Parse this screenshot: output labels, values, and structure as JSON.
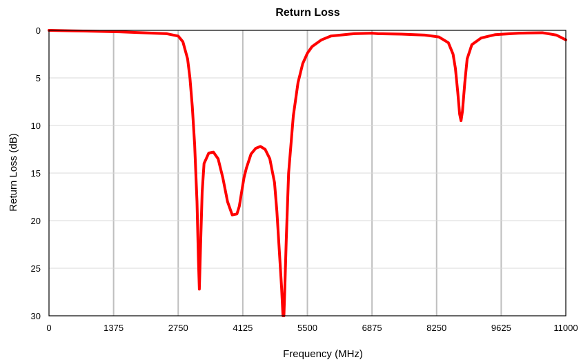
{
  "chart_data": {
    "type": "line",
    "title": "Return Loss",
    "xlabel": "Frequency (MHz)",
    "ylabel": "Return Loss (dB)",
    "xlim": [
      0,
      11000
    ],
    "ylim": [
      0,
      30
    ],
    "y_inverted": true,
    "x_ticks": [
      "0",
      "1375",
      "2750",
      "4125",
      "5500",
      "6875",
      "8250",
      "9625",
      "11000"
    ],
    "y_ticks": [
      "0",
      "5",
      "10",
      "15",
      "20",
      "25",
      "30"
    ],
    "grid": {
      "x": true,
      "y": true
    },
    "series": [
      {
        "color": "#ff0000",
        "x": [
          0,
          500,
          1000,
          1500,
          2000,
          2500,
          2750,
          2850,
          2950,
          3000,
          3050,
          3100,
          3150,
          3180,
          3200,
          3230,
          3260,
          3300,
          3400,
          3500,
          3600,
          3700,
          3800,
          3900,
          4000,
          4050,
          4100,
          4150,
          4200,
          4300,
          4400,
          4500,
          4600,
          4700,
          4800,
          4850,
          4900,
          4950,
          4980,
          5000,
          5020,
          5050,
          5100,
          5200,
          5300,
          5400,
          5500,
          5600,
          5800,
          6000,
          6500,
          6875,
          7000,
          7500,
          8000,
          8300,
          8500,
          8600,
          8650,
          8700,
          8740,
          8770,
          8800,
          8850,
          8900,
          9000,
          9200,
          9500,
          10000,
          10500,
          10800,
          11000
        ],
        "values": [
          0.0,
          0.05,
          0.1,
          0.15,
          0.25,
          0.35,
          0.6,
          1.2,
          3.0,
          5.0,
          8.0,
          12.0,
          18.0,
          24.0,
          27.2,
          22.0,
          17.0,
          14.0,
          12.9,
          12.8,
          13.5,
          15.5,
          18.0,
          19.4,
          19.3,
          18.5,
          17.0,
          15.5,
          14.5,
          13.0,
          12.4,
          12.2,
          12.5,
          13.5,
          16.0,
          19.0,
          23.0,
          27.0,
          30.0,
          30.0,
          27.0,
          22.0,
          15.0,
          9.0,
          5.5,
          3.5,
          2.4,
          1.7,
          1.0,
          0.6,
          0.35,
          0.3,
          0.35,
          0.4,
          0.5,
          0.7,
          1.3,
          2.5,
          4.0,
          6.5,
          8.8,
          9.5,
          8.5,
          5.5,
          3.0,
          1.5,
          0.8,
          0.45,
          0.3,
          0.25,
          0.5,
          1.0
        ]
      }
    ]
  }
}
